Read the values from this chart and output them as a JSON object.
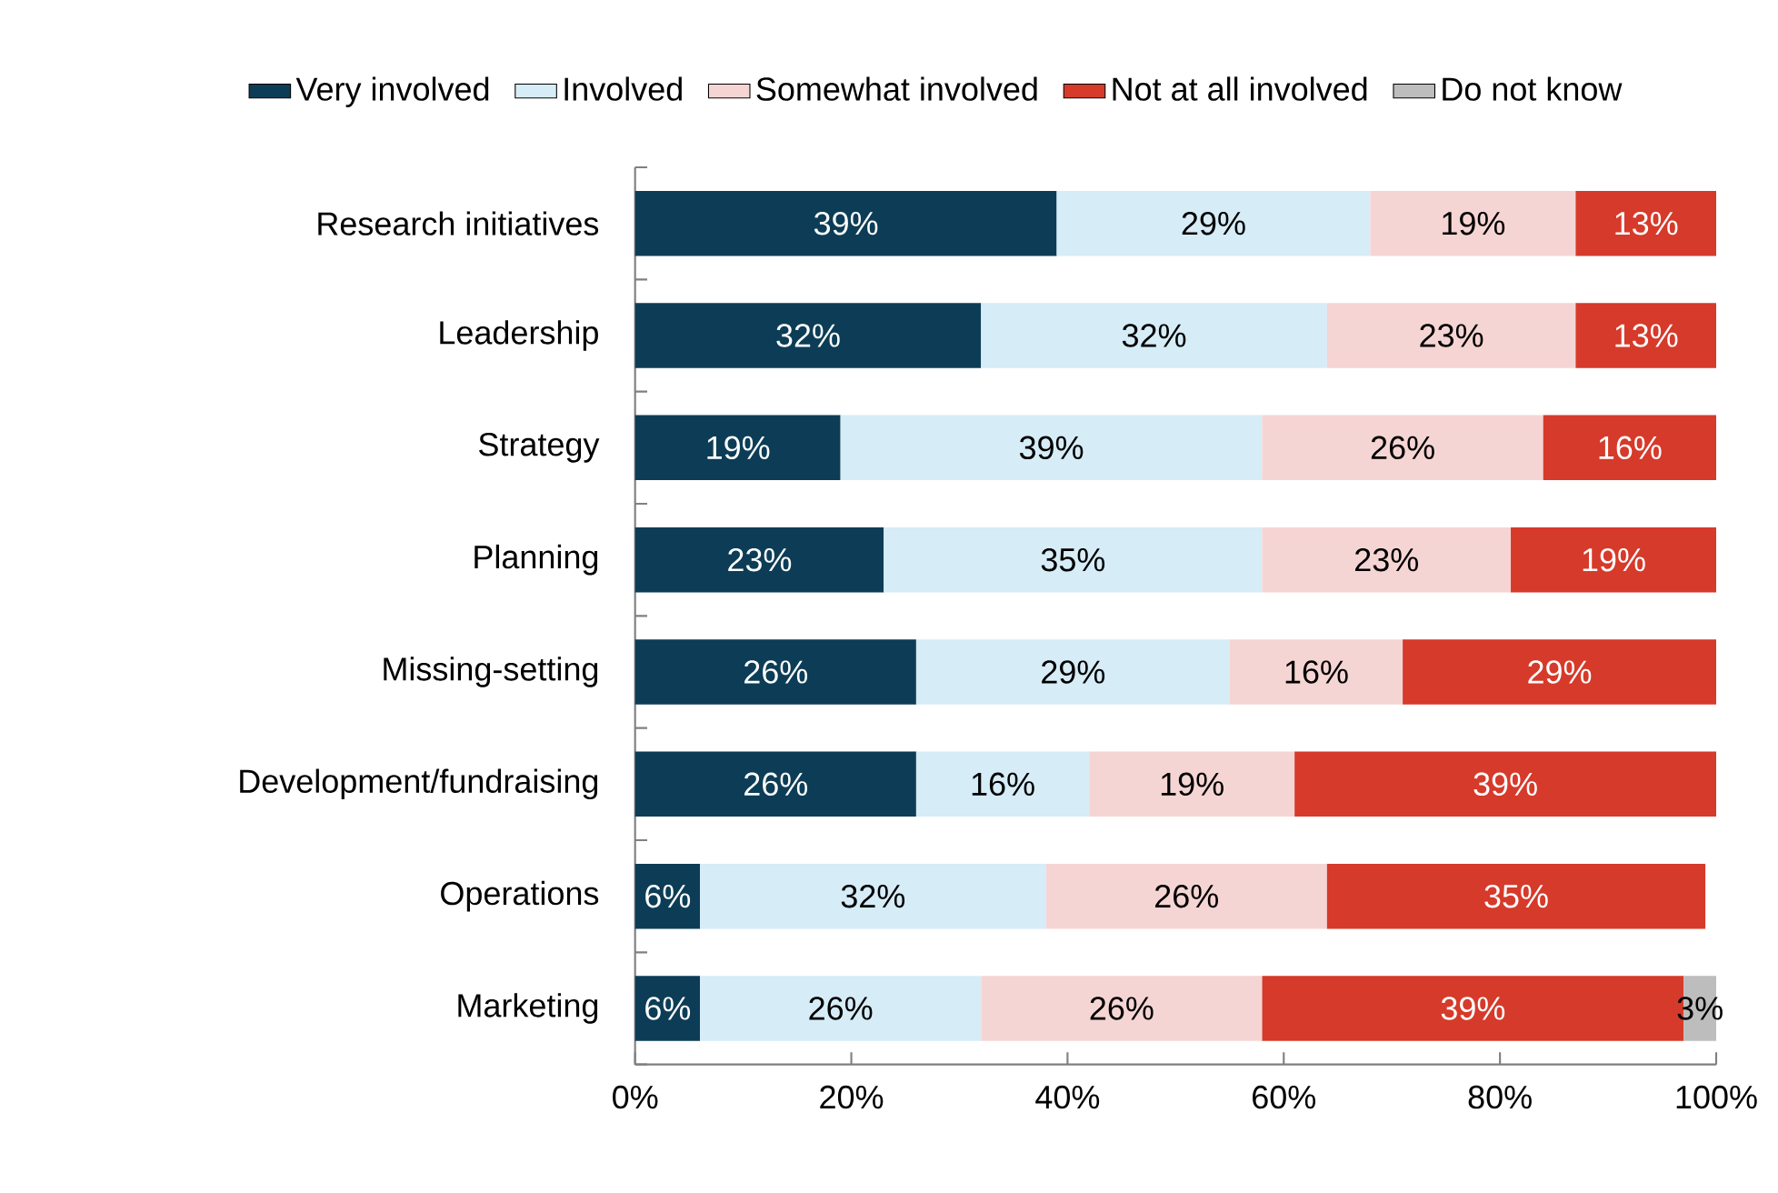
{
  "chart_data": {
    "type": "bar",
    "orientation": "horizontal",
    "stacked": true,
    "categories": [
      "Research initiatives",
      "Leadership",
      "Strategy",
      "Planning",
      "Missing-setting",
      "Development/fundraising",
      "Operations",
      "Marketing"
    ],
    "series": [
      {
        "name": "Very involved",
        "color": "#0d3d56",
        "values": [
          39,
          32,
          19,
          23,
          26,
          26,
          6,
          6
        ],
        "value_labels": [
          "39%",
          "32%",
          "19%",
          "23%",
          "26%",
          "26%",
          "6%",
          "6%"
        ]
      },
      {
        "name": "Involved",
        "color": "#d6ecf7",
        "values": [
          29,
          32,
          39,
          35,
          29,
          16,
          32,
          26
        ],
        "value_labels": [
          "29%",
          "32%",
          "39%",
          "35%",
          "29%",
          "16%",
          "32%",
          "26%"
        ]
      },
      {
        "name": "Somewhat involved",
        "color": "#f5d5d3",
        "values": [
          19,
          23,
          26,
          23,
          16,
          19,
          26,
          26
        ],
        "value_labels": [
          "19%",
          "23%",
          "26%",
          "23%",
          "16%",
          "19%",
          "26%",
          "26%"
        ]
      },
      {
        "name": "Not at all involved",
        "color": "#d63a2a",
        "values": [
          13,
          13,
          16,
          19,
          29,
          39,
          35,
          39
        ],
        "value_labels": [
          "13%",
          "13%",
          "16%",
          "19%",
          "29%",
          "39%",
          "35%",
          "39%"
        ]
      },
      {
        "name": "Do not know",
        "color": "#bdbdbd",
        "values": [
          null,
          null,
          null,
          null,
          null,
          null,
          null,
          3
        ],
        "value_labels": [
          null,
          null,
          null,
          null,
          null,
          null,
          null,
          "3%"
        ]
      }
    ],
    "xlim": [
      0,
      100
    ],
    "xticks": [
      {
        "value": 0,
        "label": "0%"
      },
      {
        "value": 20,
        "label": "20%"
      },
      {
        "value": 40,
        "label": "40%"
      },
      {
        "value": 60,
        "label": "60%"
      },
      {
        "value": 80,
        "label": "80%"
      },
      {
        "value": 100,
        "label": "100%"
      }
    ],
    "legend": "top"
  }
}
